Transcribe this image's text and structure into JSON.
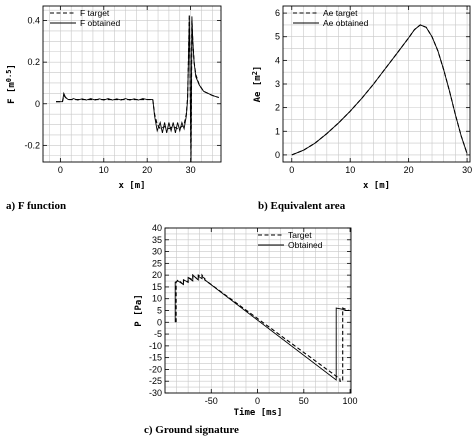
{
  "chart_data": [
    {
      "id": "a",
      "type": "line",
      "caption": "a) F function",
      "xlabel": "x [m]",
      "ylabel": "F [m^0.5]",
      "xlim": [
        -4,
        37
      ],
      "ylim": [
        -0.28,
        0.47
      ],
      "xticks": [
        0,
        10,
        20,
        30
      ],
      "yticks": [
        -0.2,
        0,
        0.2,
        0.4
      ],
      "ytick_labels": [
        "-0.2",
        "0",
        "0.2",
        "0.4"
      ],
      "grid": true,
      "legend_position": "top-left",
      "series": [
        {
          "name": "F target",
          "style": "dashed",
          "x": [
            -1,
            0.5,
            0.8,
            1.2,
            1.8,
            2.5,
            5,
            10,
            15,
            20,
            21.3,
            21.7,
            22.3,
            23,
            24,
            25,
            26,
            27,
            28,
            28.5,
            29,
            29.3,
            29.5,
            29.7,
            29.9,
            30.1,
            30.3,
            30.5,
            30.8,
            31.2,
            32,
            33,
            34,
            35,
            36.5
          ],
          "y": [
            0.01,
            0.01,
            0.04,
            0.03,
            0.02,
            0.02,
            0.02,
            0.02,
            0.02,
            0.02,
            0.02,
            -0.05,
            -0.1,
            -0.12,
            -0.11,
            -0.12,
            -0.11,
            -0.12,
            -0.11,
            -0.1,
            -0.05,
            0.03,
            0.2,
            0.43,
            0.1,
            -0.27,
            0.4,
            0.3,
            0.2,
            0.14,
            0.09,
            0.06,
            0.05,
            0.04,
            0.03
          ]
        },
        {
          "name": "F obtained",
          "style": "solid",
          "x": [
            -1,
            0.5,
            0.8,
            1.2,
            1.8,
            2.5,
            3,
            4,
            5,
            6,
            7,
            8,
            9,
            10,
            11,
            12,
            13,
            14,
            15,
            16,
            17,
            18,
            19,
            20,
            21.3,
            21.7,
            22.3,
            23,
            23.5,
            24,
            24.5,
            25,
            25.5,
            26,
            26.5,
            27,
            27.5,
            28,
            28.5,
            29,
            29.3,
            29.5,
            29.7,
            29.9,
            30.1,
            30.3,
            30.5,
            30.8,
            31.2,
            32,
            33,
            34,
            35,
            36.5
          ],
          "y": [
            0.01,
            0.01,
            0.05,
            0.03,
            0.02,
            0.02,
            0.025,
            0.018,
            0.024,
            0.018,
            0.025,
            0.018,
            0.024,
            0.018,
            0.025,
            0.018,
            0.024,
            0.018,
            0.025,
            0.018,
            0.024,
            0.018,
            0.025,
            0.02,
            0.02,
            -0.06,
            -0.13,
            -0.09,
            -0.14,
            -0.09,
            -0.14,
            -0.09,
            -0.13,
            -0.09,
            -0.14,
            -0.09,
            -0.13,
            -0.09,
            -0.12,
            -0.06,
            0.02,
            0.2,
            0.41,
            0.1,
            -0.28,
            0.42,
            0.3,
            0.2,
            0.13,
            0.09,
            0.06,
            0.05,
            0.04,
            0.03
          ]
        }
      ]
    },
    {
      "id": "b",
      "type": "line",
      "caption": "b) Equivalent area",
      "xlabel": "x [m]",
      "ylabel": "Ae [m^2]",
      "xlim": [
        -1.5,
        30.5
      ],
      "ylim": [
        -0.3,
        6.3
      ],
      "xticks": [
        0,
        10,
        20,
        30
      ],
      "yticks": [
        0,
        1,
        2,
        3,
        4,
        5,
        6
      ],
      "grid": true,
      "legend_position": "top-left",
      "series": [
        {
          "name": "Ae target",
          "style": "dashed",
          "x": [
            0,
            2,
            4,
            6,
            8,
            10,
            12,
            14,
            16,
            18,
            20,
            21,
            22,
            23,
            24,
            25,
            26,
            27,
            28,
            29,
            30
          ],
          "y": [
            0,
            0.2,
            0.5,
            0.9,
            1.35,
            1.85,
            2.4,
            3.0,
            3.65,
            4.3,
            4.95,
            5.3,
            5.5,
            5.4,
            5.0,
            4.4,
            3.6,
            2.7,
            1.7,
            0.8,
            0.05
          ]
        },
        {
          "name": "Ae obtained",
          "style": "solid",
          "x": [
            0,
            2,
            4,
            6,
            8,
            10,
            12,
            14,
            16,
            18,
            20,
            21,
            22,
            23,
            24,
            25,
            26,
            27,
            28,
            29,
            30
          ],
          "y": [
            0,
            0.2,
            0.5,
            0.9,
            1.35,
            1.85,
            2.4,
            3.0,
            3.65,
            4.3,
            4.95,
            5.3,
            5.5,
            5.4,
            5.0,
            4.4,
            3.6,
            2.7,
            1.7,
            0.8,
            0.05
          ]
        }
      ]
    },
    {
      "id": "c",
      "type": "line",
      "caption": "c) Ground signature",
      "xlabel": "Time [ms]",
      "ylabel": "P [Pa]",
      "xlim": [
        -100,
        101
      ],
      "ylim": [
        -30,
        40
      ],
      "xticks": [
        -50,
        0,
        50,
        100
      ],
      "yticks": [
        -30,
        -25,
        -20,
        -15,
        -10,
        -5,
        0,
        5,
        10,
        15,
        20,
        25,
        30,
        35,
        40
      ],
      "grid": true,
      "legend_position": "top-right",
      "series": [
        {
          "name": "Target",
          "style": "dashed",
          "x": [
            -88,
            -88,
            -86,
            -80,
            -80,
            -75,
            -75,
            -70,
            -70,
            -64,
            -64,
            -60,
            -60,
            -57,
            -57,
            89,
            89,
            92,
            92,
            99
          ],
          "y": [
            0,
            17,
            18,
            16,
            18,
            17,
            19,
            18,
            20,
            18,
            20,
            19,
            20,
            18.5,
            18,
            -24,
            -25,
            -25,
            6,
            5
          ]
        },
        {
          "name": "Obtained",
          "style": "solid",
          "x": [
            -89,
            -89,
            -86,
            -80,
            -80,
            -75,
            -75,
            -70,
            -70,
            -64,
            -64,
            -60,
            -60,
            -57,
            -57,
            85,
            85,
            92,
            95,
            99
          ],
          "y": [
            0,
            17,
            17.5,
            16,
            18,
            17,
            19,
            17.5,
            20,
            18,
            19.5,
            18.5,
            19.5,
            18.5,
            18,
            -24.5,
            6,
            5.5,
            5,
            5
          ]
        }
      ]
    }
  ]
}
